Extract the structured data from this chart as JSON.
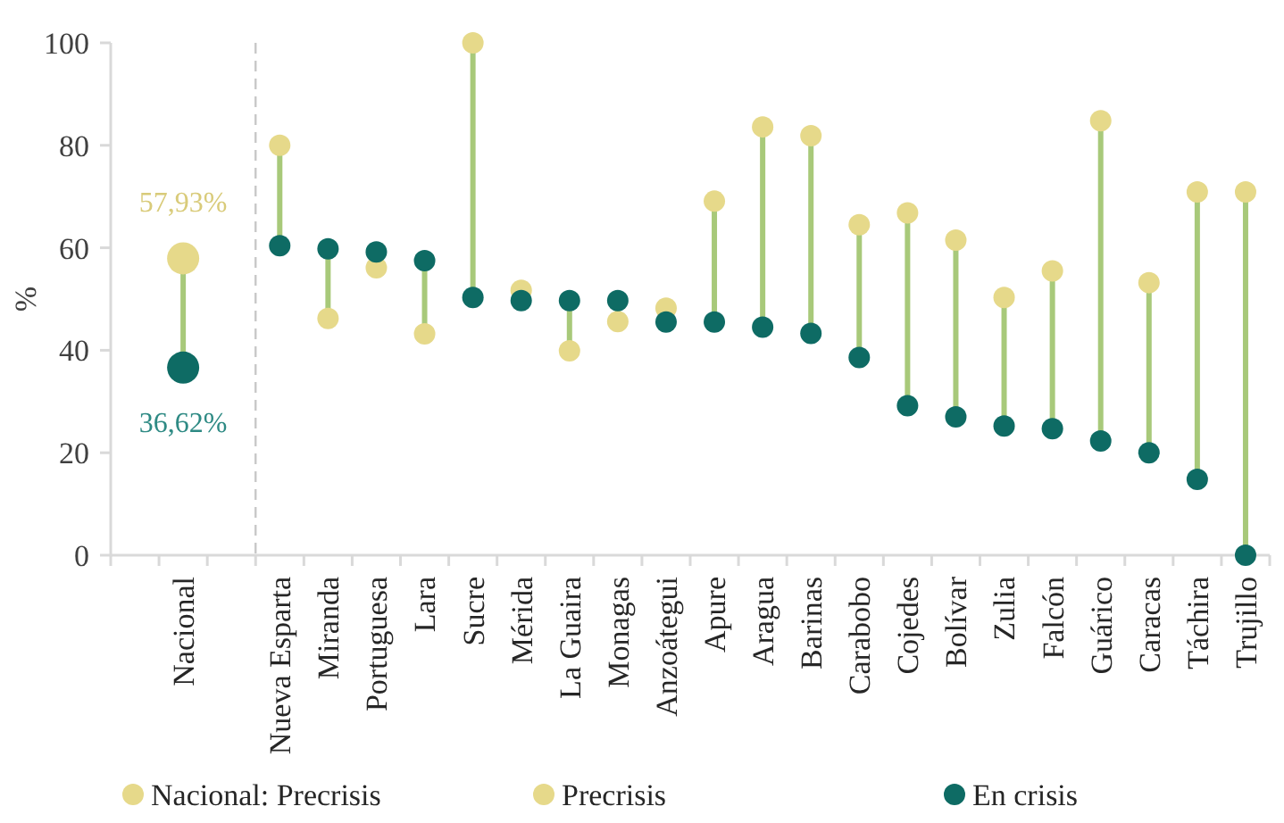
{
  "chart_data": {
    "type": "scatter",
    "ylabel": "%",
    "categories": [
      null,
      "Nacional",
      null,
      "Nueva Esparta",
      "Miranda",
      "Portuguesa",
      "Lara",
      "Sucre",
      "Mérida",
      "La Guaira",
      "Monagas",
      "Anzoátegui",
      "Apure",
      "Aragua",
      "Barinas",
      "Carabobo",
      "Cojedes",
      "Bolívar",
      "Zulia",
      "Falcón",
      "Guárico",
      "Caracas",
      "Táchira",
      "Trujillo"
    ],
    "series": [
      {
        "name": "Nacional: Precrisis",
        "color": "#e6d98a",
        "values": [
          null,
          57.93,
          null,
          null,
          null,
          null,
          null,
          null,
          null,
          null,
          null,
          null,
          null,
          null,
          null,
          null,
          null,
          null,
          null,
          null,
          null,
          null,
          null,
          null
        ],
        "value_labels": [
          null,
          "57,93%",
          null,
          null,
          null,
          null,
          null,
          null,
          null,
          null,
          null,
          null,
          null,
          null,
          null,
          null,
          null,
          null,
          null,
          null,
          null,
          null,
          null,
          null
        ]
      },
      {
        "color": "#0e6b64",
        "values": [
          null,
          36.62,
          null,
          null,
          null,
          null,
          null,
          null,
          null,
          null,
          null,
          null,
          null,
          null,
          null,
          null,
          null,
          null,
          null,
          null,
          null,
          null,
          null,
          null
        ],
        "value_labels": [
          null,
          "36,62%",
          null,
          null,
          null,
          null,
          null,
          null,
          null,
          null,
          null,
          null,
          null,
          null,
          null,
          null,
          null,
          null,
          null,
          null,
          null,
          null,
          null,
          null
        ]
      },
      {
        "name": "Precrisis",
        "color": "#e6d98a",
        "values": [
          null,
          null,
          null,
          80,
          46.2,
          56.1,
          43.2,
          100,
          51.7,
          39.9,
          45.6,
          48.2,
          69.1,
          83.6,
          81.9,
          64.5,
          66.8,
          61.5,
          50.3,
          55.5,
          84.8,
          53.2,
          70.9,
          70.9
        ]
      },
      {
        "name": "En crisis",
        "color": "#0e6b64",
        "values": [
          null,
          null,
          null,
          60.4,
          59.8,
          59.2,
          57.5,
          50.3,
          49.7,
          49.7,
          49.7,
          45.5,
          45.5,
          44.5,
          43.3,
          38.6,
          29.2,
          27.0,
          25.2,
          24.7,
          22.3,
          20.0,
          14.8,
          0
        ]
      }
    ],
    "ylim": [
      0,
      100
    ],
    "yticks": [
      0,
      20,
      40,
      60,
      80,
      100
    ],
    "grid": false,
    "legend": "bottom",
    "marker": "circle"
  }
}
